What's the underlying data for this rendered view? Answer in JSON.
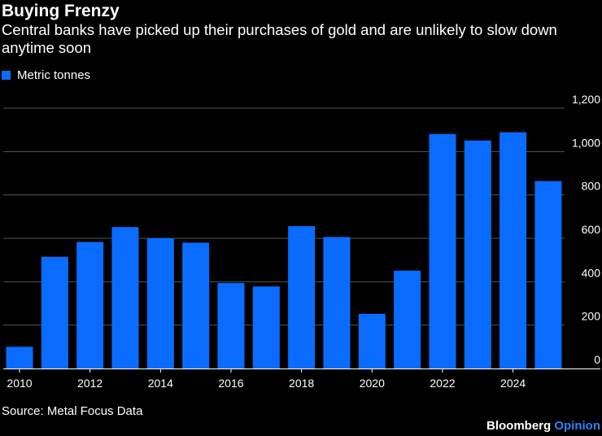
{
  "brand": {
    "name": "Bloomberg",
    "suffix": "Opinion",
    "suffix_color": "#2f80ff"
  },
  "colors": {
    "bar": "#0a6cff",
    "grid": "#555555",
    "background": "#000000",
    "text": "#ffffff"
  },
  "chart_data": {
    "type": "bar",
    "title": "Buying Frenzy",
    "subtitle": "Central banks have picked up their purchases of gold and are unlikely to slow down anytime soon",
    "legend": [
      "Metric tonnes"
    ],
    "legend_position": "top-left",
    "source": "Source: Metal Focus Data",
    "xlabel": "",
    "ylabel": "",
    "categories": [
      "2010",
      "2011",
      "2012",
      "2013",
      "2014",
      "2015",
      "2016",
      "2017",
      "2018",
      "2019",
      "2020",
      "2021",
      "2022",
      "2023",
      "2024",
      "2025"
    ],
    "values": [
      100,
      515,
      583,
      652,
      601,
      580,
      394,
      378,
      656,
      606,
      252,
      451,
      1081,
      1051,
      1089,
      864
    ],
    "x_ticks": [
      "2010",
      "2012",
      "2014",
      "2016",
      "2018",
      "2020",
      "2022",
      "2024"
    ],
    "y_ticks": [
      0,
      200,
      400,
      600,
      800,
      1000,
      1200
    ],
    "y_tick_labels": [
      "0",
      "200",
      "400",
      "600",
      "800",
      "1,000",
      "1,200"
    ],
    "ylim": [
      0,
      1200
    ],
    "y_axis_side": "right",
    "grid": true
  }
}
